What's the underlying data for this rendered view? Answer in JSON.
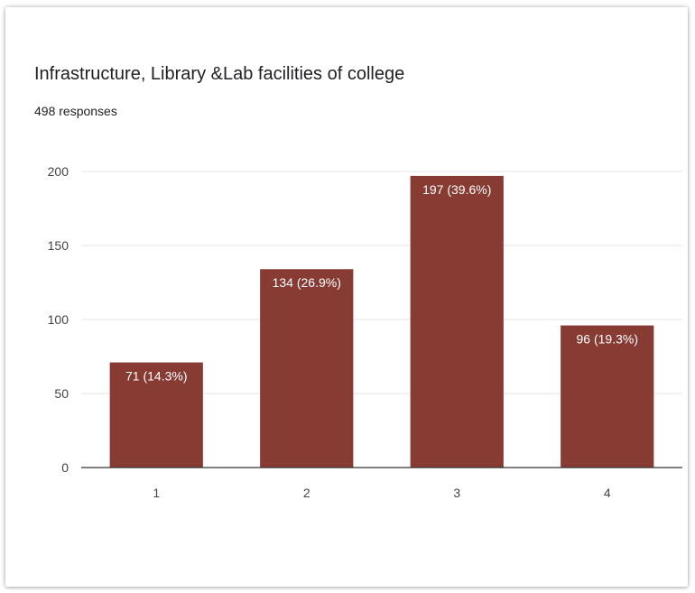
{
  "header": {
    "title": "Infrastructure, Library &Lab facilities of college",
    "subtitle": "498 responses"
  },
  "colors": {
    "bar": "#873b33",
    "grid": "#e6e6e6",
    "axis": "#333333"
  },
  "chart_data": {
    "type": "bar",
    "title": "Infrastructure, Library &Lab facilities of college",
    "subtitle": "498 responses",
    "categories": [
      "1",
      "2",
      "3",
      "4"
    ],
    "values": [
      71,
      134,
      197,
      96
    ],
    "data_labels": [
      "71 (14.3%)",
      "134 (26.9%)",
      "197 (39.6%)",
      "96 (19.3%)"
    ],
    "yticks": [
      0,
      50,
      100,
      150,
      200
    ],
    "ylim": [
      0,
      200
    ],
    "grid": true,
    "legend": "none",
    "xlabel": "",
    "ylabel": ""
  }
}
